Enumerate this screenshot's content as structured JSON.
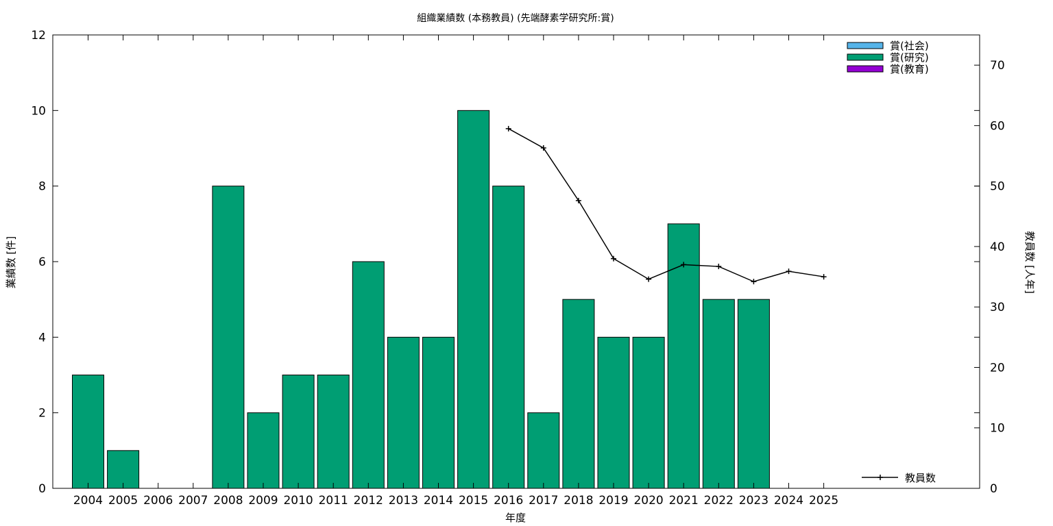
{
  "chart_data": {
    "type": "bar",
    "title": "組織業績数 (本務教員) (先端酵素学研究所:賞)",
    "xlabel": "年度",
    "ylabel": "業績数 [件]",
    "y2label": "教員数 [人年]",
    "categories": [
      "2004",
      "2005",
      "2006",
      "2007",
      "2008",
      "2009",
      "2010",
      "2011",
      "2012",
      "2013",
      "2014",
      "2015",
      "2016",
      "2017",
      "2018",
      "2019",
      "2020",
      "2021",
      "2022",
      "2023",
      "2024",
      "2025"
    ],
    "ylim": [
      0,
      12
    ],
    "yticks": [
      0,
      2,
      4,
      6,
      8,
      10,
      12
    ],
    "y2lim": [
      0,
      75
    ],
    "y2ticks": [
      0,
      10,
      20,
      30,
      40,
      50,
      60,
      70
    ],
    "grid": false,
    "legend_position": "top-right",
    "series": [
      {
        "name": "賞(社会)",
        "kind": "bar",
        "color": "#56b4e9",
        "values": [
          0,
          0,
          0,
          0,
          0,
          0,
          0,
          0,
          0,
          0,
          0,
          0,
          0,
          0,
          0,
          0,
          0,
          0,
          0,
          0,
          0,
          0
        ]
      },
      {
        "name": "賞(研究)",
        "kind": "bar",
        "color": "#009e73",
        "values": [
          3,
          1,
          0,
          0,
          8,
          2,
          3,
          3,
          6,
          4,
          4,
          10,
          8,
          2,
          5,
          4,
          4,
          7,
          5,
          5,
          0,
          0
        ]
      },
      {
        "name": "賞(教育)",
        "kind": "bar",
        "color": "#9400d3",
        "values": [
          0,
          0,
          0,
          0,
          0,
          0,
          0,
          0,
          0,
          0,
          0,
          0,
          0,
          0,
          0,
          0,
          0,
          0,
          0,
          0,
          0,
          0
        ]
      },
      {
        "name": "教員数",
        "kind": "line",
        "axis": "y2",
        "color": "#000000",
        "values": [
          null,
          null,
          null,
          null,
          null,
          null,
          null,
          null,
          null,
          null,
          null,
          null,
          59.5,
          56.3,
          47.6,
          38,
          34.6,
          37,
          36.7,
          34.2,
          35.9,
          35
        ]
      }
    ]
  }
}
